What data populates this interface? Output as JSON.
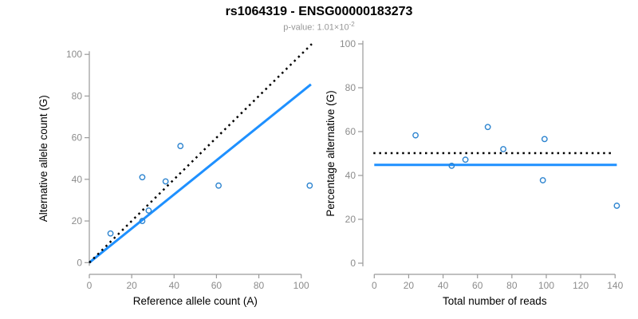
{
  "header": {
    "title": "rs1064319 - ENSG00000183273",
    "subtitle_text": "p-value: 1.01×10",
    "subtitle_exponent": "-2"
  },
  "colors": {
    "fit_line": "#1e90ff",
    "identity_line": "#000000",
    "point": "#2b83cf",
    "axis": "#9a9a9a",
    "tick_label": "#8c8c8c",
    "axis_title": "#000000",
    "subtitle": "#979797"
  },
  "chart_data": [
    {
      "type": "scatter",
      "name": "allele-counts",
      "xlabel": "Reference allele count (A)",
      "ylabel": "Alternative allele count (G)",
      "xlim": [
        0,
        105
      ],
      "ylim": [
        0,
        105
      ],
      "xticks": [
        0,
        20,
        40,
        60,
        80,
        100
      ],
      "yticks": [
        0,
        20,
        40,
        60,
        80,
        100
      ],
      "grid": false,
      "legend": "none",
      "points": [
        [
          10,
          14
        ],
        [
          25,
          20
        ],
        [
          25,
          41
        ],
        [
          28,
          25
        ],
        [
          36,
          39
        ],
        [
          43,
          56
        ],
        [
          61,
          37
        ],
        [
          104,
          37
        ]
      ],
      "lines": [
        {
          "name": "fitted-ratio",
          "style": "solid",
          "color": "#1e90ff",
          "x1": 0,
          "y1": 0,
          "x2": 104.6,
          "y2": 85.6
        },
        {
          "name": "identity",
          "style": "dotted",
          "color": "#000000",
          "x1": 0,
          "y1": 0,
          "x2": 105,
          "y2": 105
        }
      ]
    },
    {
      "type": "scatter",
      "name": "percentage-alternative",
      "xlabel": "Total number of reads",
      "ylabel": "Percentage alternative (G)",
      "xlim": [
        0,
        145
      ],
      "ylim": [
        0,
        100
      ],
      "xticks": [
        0,
        20,
        40,
        60,
        80,
        100,
        120,
        140
      ],
      "yticks": [
        0,
        20,
        40,
        60,
        80,
        100
      ],
      "grid": false,
      "legend": "none",
      "points": [
        [
          24,
          58.3
        ],
        [
          45,
          44.4
        ],
        [
          53,
          47.2
        ],
        [
          66,
          62.1
        ],
        [
          75,
          52
        ],
        [
          98,
          37.8
        ],
        [
          99,
          56.6
        ],
        [
          141,
          26.2
        ]
      ],
      "lines": [
        {
          "name": "fitted-percentage",
          "style": "solid",
          "color": "#1e90ff",
          "x1": 0,
          "y1": 44.8,
          "x2": 141,
          "y2": 44.8
        },
        {
          "name": "expected-50pct",
          "style": "dotted",
          "color": "#000000",
          "x1": -0.5,
          "y1": 50.2,
          "x2": 138.5,
          "y2": 50.2
        }
      ]
    }
  ]
}
